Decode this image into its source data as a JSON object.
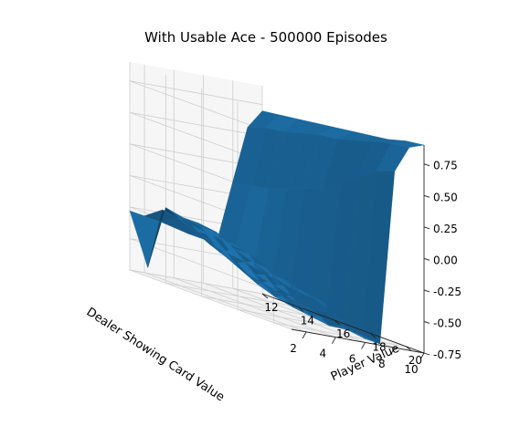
{
  "chart_data": {
    "type": "surface",
    "title": "With Usable Ace - 500000 Episodes",
    "xlabel": "Dealer Showing Card Value",
    "ylabel": "Player Value",
    "zlabel": "",
    "x": [
      1,
      2,
      3,
      4,
      5,
      6,
      7,
      8,
      9,
      10
    ],
    "y": [
      12,
      13,
      14,
      15,
      16,
      17,
      18,
      19,
      20,
      21
    ],
    "xlim": [
      1,
      10
    ],
    "ylim": [
      12,
      21
    ],
    "zlim": [
      -0.75,
      0.9
    ],
    "xticks": [
      "2",
      "4",
      "6",
      "8",
      "10"
    ],
    "yticks": [
      "12",
      "14",
      "16",
      "18",
      "20"
    ],
    "zticks": [
      "-0.75",
      "-0.50",
      "-0.25",
      "0.00",
      "0.25",
      "0.50",
      "0.75"
    ],
    "z": [
      [
        -0.28,
        -0.3,
        -0.32,
        -0.35,
        -0.38,
        -0.4,
        -0.36,
        0.1,
        0.55,
        0.7
      ],
      [
        -0.68,
        -0.2,
        -0.24,
        -0.28,
        -0.32,
        -0.35,
        -0.38,
        0.12,
        0.6,
        0.72
      ],
      [
        -0.15,
        -0.22,
        -0.3,
        -0.38,
        -0.45,
        -0.5,
        -0.48,
        0.15,
        0.62,
        0.74
      ],
      [
        -0.18,
        -0.2,
        -0.28,
        -0.4,
        -0.52,
        -0.6,
        -0.55,
        0.2,
        0.66,
        0.76
      ],
      [
        -0.2,
        -0.22,
        -0.3,
        -0.42,
        -0.55,
        -0.65,
        -0.62,
        0.25,
        0.7,
        0.78
      ],
      [
        -0.35,
        -0.3,
        -0.32,
        -0.45,
        -0.58,
        -0.68,
        -0.65,
        0.3,
        0.72,
        0.8
      ],
      [
        -0.38,
        -0.35,
        -0.38,
        -0.48,
        -0.6,
        -0.7,
        -0.68,
        0.4,
        0.76,
        0.82
      ],
      [
        -0.42,
        -0.4,
        -0.42,
        -0.5,
        -0.62,
        -0.72,
        -0.7,
        0.5,
        0.8,
        0.84
      ],
      [
        -0.45,
        -0.44,
        -0.46,
        -0.52,
        -0.6,
        -0.7,
        -0.72,
        0.6,
        0.84,
        0.88
      ],
      [
        -0.48,
        -0.46,
        -0.48,
        -0.55,
        -0.62,
        -0.72,
        -0.74,
        0.65,
        0.86,
        0.9
      ]
    ],
    "surface_color": "#1f77b4",
    "grid": true
  }
}
